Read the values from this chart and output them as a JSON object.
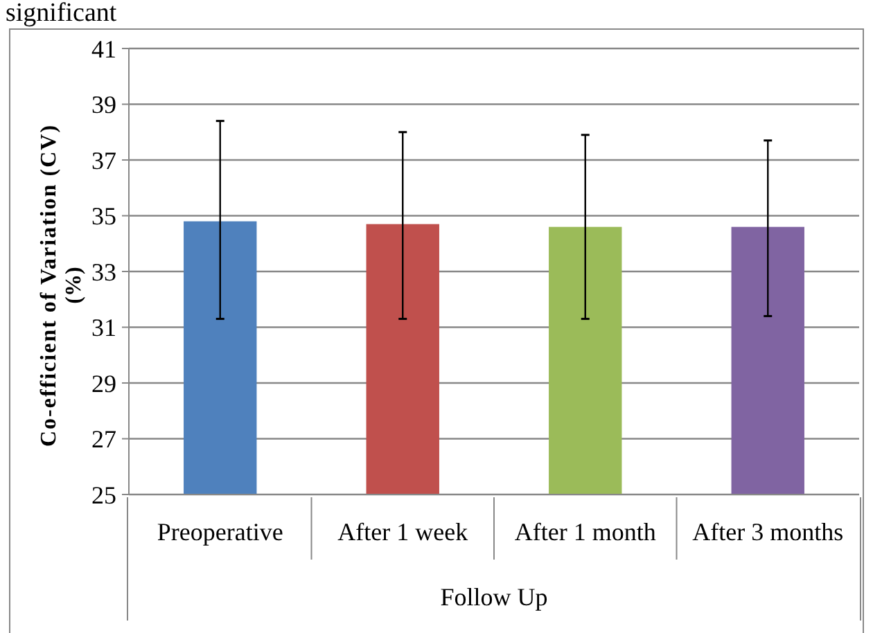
{
  "chart_data": {
    "type": "bar",
    "ylabel": "Co-efficient of Variation (CV) (%)",
    "xlabel": "Follow Up",
    "annotations": [
      "significant"
    ],
    "categories": [
      "Preoperative",
      "After 1 week",
      "After 1 month",
      "After 3 months"
    ],
    "values": [
      34.8,
      34.7,
      34.6,
      34.6
    ],
    "colors": [
      "#4f81bd",
      "#c0504d",
      "#9bbb59",
      "#8064a2"
    ],
    "errors": [
      [
        31.3,
        38.4
      ],
      [
        31.3,
        38.0
      ],
      [
        31.3,
        37.9
      ],
      [
        31.4,
        37.7
      ]
    ],
    "ylim": [
      25,
      41
    ],
    "yticks": [
      25,
      27,
      29,
      31,
      33,
      35,
      37,
      39,
      41
    ],
    "grid": "y"
  }
}
